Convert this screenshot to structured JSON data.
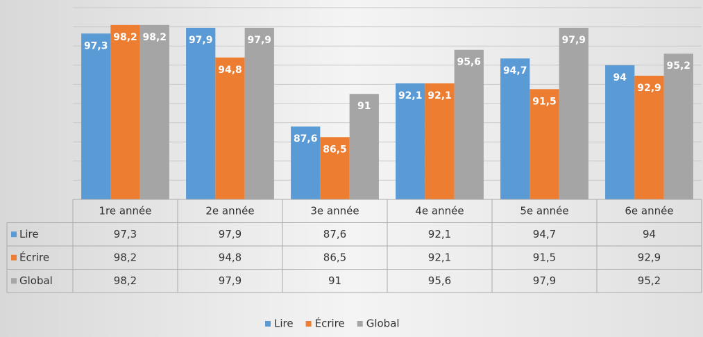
{
  "chart_data": {
    "type": "bar",
    "categories": [
      "1re année",
      "2e année",
      "3e année",
      "4e année",
      "5e année",
      "6e année"
    ],
    "series": [
      {
        "name": "Lire",
        "color": "#5b9bd5",
        "values": [
          97.3,
          97.9,
          87.6,
          92.1,
          94.7,
          94
        ],
        "value_labels": [
          "97,3",
          "97,9",
          "87,6",
          "92,1",
          "94,7",
          "94"
        ]
      },
      {
        "name": "Écrire",
        "color": "#ed7d31",
        "values": [
          98.2,
          94.8,
          86.5,
          92.1,
          91.5,
          92.9
        ],
        "value_labels": [
          "98,2",
          "94,8",
          "86,5",
          "92,1",
          "91,5",
          "92,9"
        ]
      },
      {
        "name": "Global",
        "color": "#a5a5a5",
        "values": [
          98.2,
          97.9,
          91,
          95.6,
          97.9,
          95.2
        ],
        "value_labels": [
          "98,2",
          "97,9",
          "91",
          "95,6",
          "97,9",
          "95,2"
        ]
      }
    ],
    "ylim": [
      80,
      100
    ],
    "yticks": [
      80,
      82,
      84,
      86,
      88,
      90,
      92,
      94,
      96,
      98,
      100
    ],
    "grid": true,
    "data_table": true,
    "legend": "bottom"
  }
}
